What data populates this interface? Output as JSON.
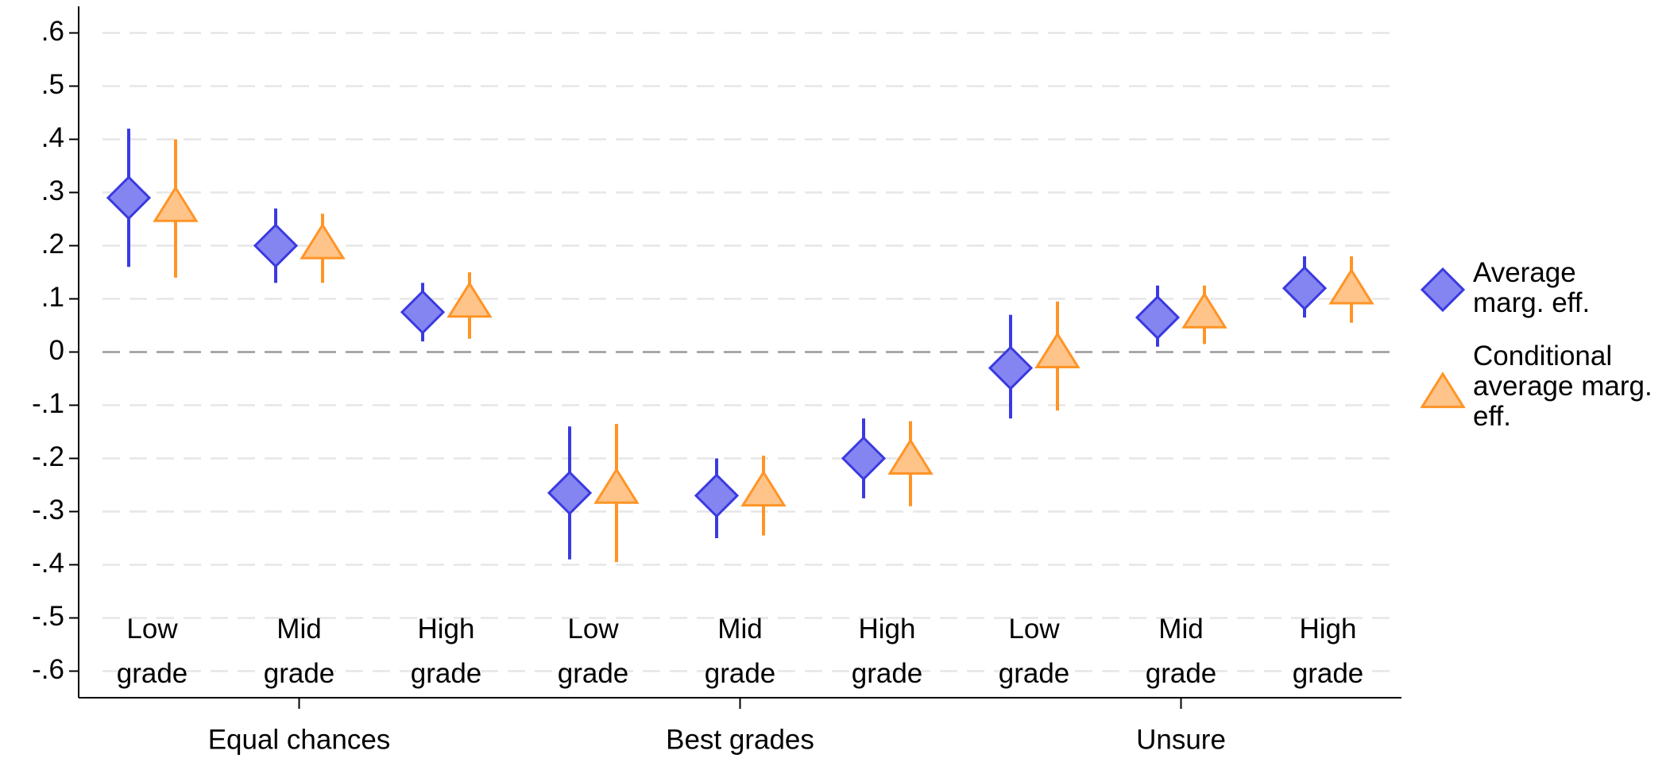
{
  "chart_data": {
    "type": "errorpoint",
    "categories": [
      "Low grade",
      "Mid grade",
      "High grade",
      "Low grade",
      "Mid grade",
      "High grade",
      "Low grade",
      "Mid grade",
      "High grade"
    ],
    "groups": [
      "Equal chances",
      "Best grades",
      "Unsure"
    ],
    "series": [
      {
        "name": "Average marg. eff.",
        "color": "#3a3ae0",
        "fill": "#8585f2",
        "marker": "diamond",
        "values": [
          0.29,
          0.2,
          0.075,
          -0.265,
          -0.27,
          -0.2,
          -0.03,
          0.065,
          0.12
        ],
        "lower": [
          0.16,
          0.13,
          0.02,
          -0.39,
          -0.35,
          -0.275,
          -0.125,
          0.01,
          0.065
        ],
        "upper": [
          0.42,
          0.27,
          0.13,
          -0.14,
          -0.2,
          -0.125,
          0.07,
          0.125,
          0.18
        ]
      },
      {
        "name": "Conditional average marg. eff.",
        "color": "#ff9426",
        "fill": "#ffc48a",
        "marker": "triangle",
        "values": [
          0.27,
          0.2,
          0.09,
          -0.26,
          -0.265,
          -0.205,
          -0.005,
          0.07,
          0.115
        ],
        "lower": [
          0.14,
          0.13,
          0.025,
          -0.395,
          -0.345,
          -0.29,
          -0.11,
          0.015,
          0.055
        ],
        "upper": [
          0.4,
          0.26,
          0.15,
          -0.135,
          -0.195,
          -0.13,
          0.095,
          0.125,
          0.18
        ]
      }
    ],
    "ylim": [
      -0.65,
      0.65
    ],
    "yticks": [
      {
        "value": 0.6,
        "label": ".6"
      },
      {
        "value": 0.5,
        "label": ".5"
      },
      {
        "value": 0.4,
        "label": ".4"
      },
      {
        "value": 0.3,
        "label": ".3"
      },
      {
        "value": 0.2,
        "label": ".2"
      },
      {
        "value": 0.1,
        "label": ".1"
      },
      0,
      {
        "value": -0.1,
        "label": "-.1"
      },
      {
        "value": -0.2,
        "label": "-.2"
      },
      {
        "value": -0.3,
        "label": "-.3"
      },
      {
        "value": -0.4,
        "label": "-.4"
      },
      {
        "value": -0.5,
        "label": "-.5"
      },
      {
        "value": -0.6,
        "label": "-.6"
      }
    ],
    "grid": true,
    "legend": "right"
  }
}
